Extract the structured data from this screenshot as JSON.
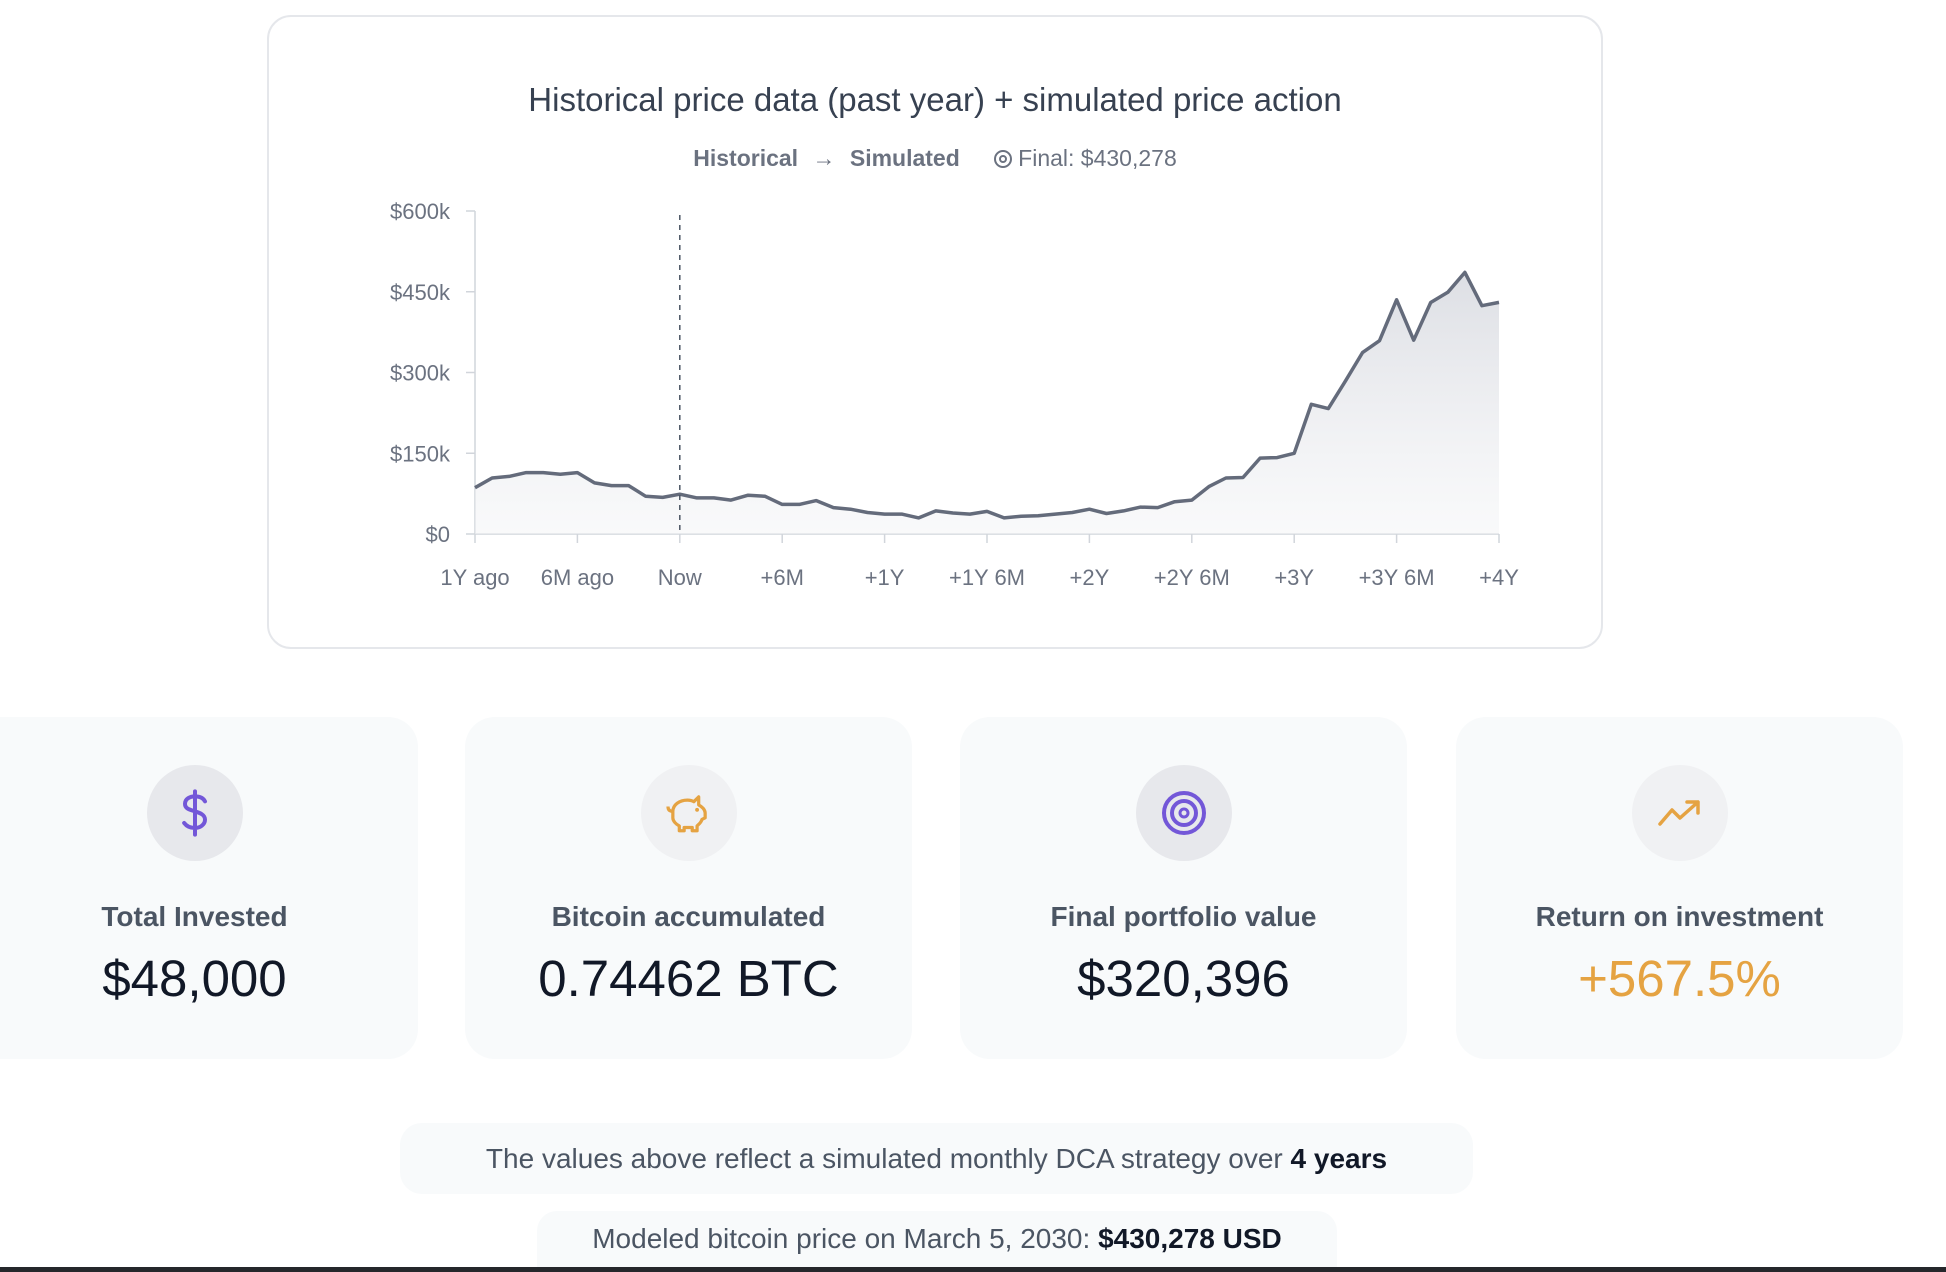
{
  "chart_card": {
    "title": "Historical price data (past year) + simulated price action",
    "legend": {
      "historical_label": "Historical",
      "arrow": "→",
      "simulated_label": "Simulated",
      "final_icon": "target-icon",
      "final_label": "Final: $430,278"
    }
  },
  "chart_data": {
    "type": "area",
    "title": "Historical price data (past year) + simulated price action",
    "xlabel": "",
    "ylabel": "",
    "x_unit": "months",
    "x_ticks": [
      0,
      6,
      12,
      18,
      24,
      30,
      36,
      42,
      48,
      54,
      60
    ],
    "x_tick_labels": [
      "1Y ago",
      "6M ago",
      "Now",
      "+6M",
      "+1Y",
      "+1Y 6M",
      "+2Y",
      "+2Y 6M",
      "+3Y",
      "+3Y 6M",
      "+4Y"
    ],
    "y_ticks": [
      0,
      150000,
      300000,
      450000,
      600000
    ],
    "y_tick_labels": [
      "$0",
      "$150k",
      "$300k",
      "$450k",
      "$600k"
    ],
    "ylim": [
      0,
      600000
    ],
    "xlim": [
      0,
      60
    ],
    "now_marker": 12,
    "grid": false,
    "line_color": "#646b7b",
    "values": [
      86000,
      104000,
      107000,
      114000,
      114000,
      111000,
      114000,
      95000,
      90000,
      90000,
      70000,
      68000,
      74000,
      67000,
      67000,
      63000,
      72000,
      70000,
      55000,
      55000,
      62000,
      49000,
      46000,
      40000,
      37000,
      37000,
      30000,
      43000,
      39000,
      37000,
      42000,
      30000,
      33000,
      34000,
      37000,
      40000,
      46000,
      38000,
      43000,
      50000,
      49000,
      60000,
      63000,
      88000,
      104000,
      105000,
      141000,
      142000,
      150000,
      241000,
      233000,
      284000,
      337000,
      359000,
      435000,
      360000,
      430000,
      449000,
      486000,
      424000,
      430278
    ]
  },
  "stats": [
    {
      "icon": "dollar-icon",
      "label": "Total Invested",
      "value": "$48,000"
    },
    {
      "icon": "piggy-bank-icon",
      "label": "Bitcoin accumulated",
      "value": "0.74462 BTC"
    },
    {
      "icon": "target-icon",
      "label": "Final portfolio value",
      "value": "$320,396"
    },
    {
      "icon": "trending-up-icon",
      "label": "Return on investment",
      "value": "+567.5%"
    }
  ],
  "colors": {
    "purple": "#7357d8",
    "orange": "#e5a342"
  },
  "notes": {
    "strategy_text": "The values above reflect a simulated monthly DCA strategy over",
    "strategy_duration": "4 years",
    "modeled_text": "Modeled bitcoin price on March 5, 2030:",
    "modeled_price": "$430,278 USD"
  }
}
